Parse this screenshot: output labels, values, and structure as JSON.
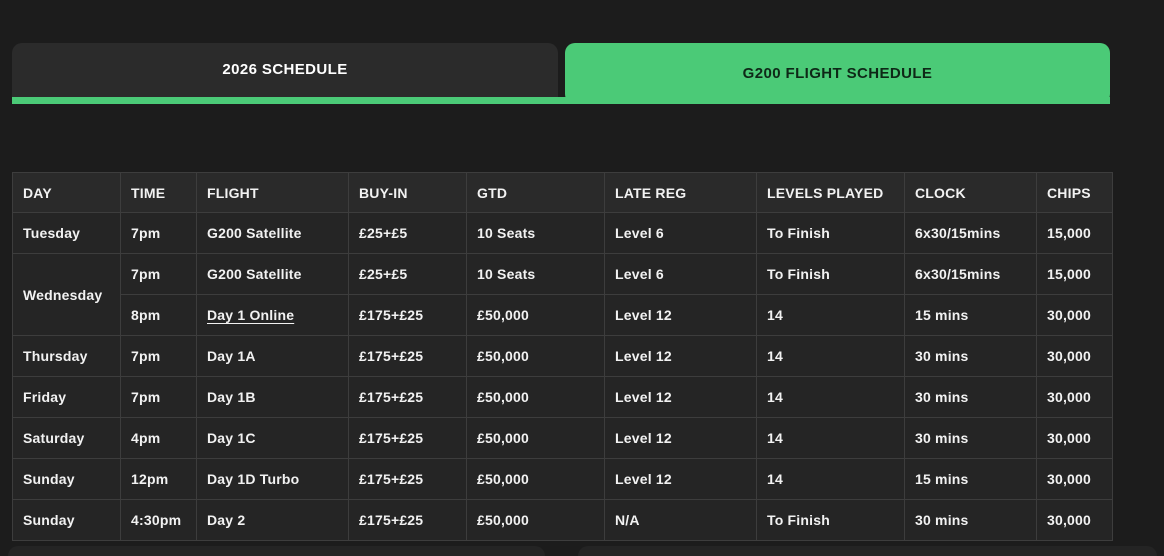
{
  "colors": {
    "accent_green": "#4bca77",
    "page_background": "#1c1c1c",
    "cell_background": "#252525"
  },
  "tabs": [
    {
      "label": "2026 SCHEDULE",
      "active": false
    },
    {
      "label": "G200 FLIGHT SCHEDULE",
      "active": true
    }
  ],
  "table": {
    "columns": [
      "DAY",
      "TIME",
      "FLIGHT",
      "BUY-IN",
      "GTD",
      "LATE REG",
      "LEVELS PLAYED",
      "CLOCK",
      "CHIPS"
    ],
    "rows": [
      {
        "day": "Tuesday",
        "rowspan": 1,
        "flight_is_link": false,
        "cells": [
          "7pm",
          "G200 Satellite",
          "£25+£5",
          "10 Seats",
          "Level 6",
          "To Finish",
          "6x30/15mins",
          "15,000"
        ]
      },
      {
        "day": "Wednesday",
        "rowspan": 2,
        "flight_is_link": false,
        "cells": [
          "7pm",
          "G200 Satellite",
          "£25+£5",
          "10 Seats",
          "Level 6",
          "To Finish",
          "6x30/15mins",
          "15,000"
        ]
      },
      {
        "day": null,
        "rowspan": 0,
        "flight_is_link": true,
        "cells": [
          "8pm",
          "Day 1 Online",
          "£175+£25",
          "£50,000",
          "Level 12",
          "14",
          "15 mins",
          "30,000"
        ]
      },
      {
        "day": "Thursday",
        "rowspan": 1,
        "flight_is_link": false,
        "cells": [
          "7pm",
          "Day 1A",
          "£175+£25",
          "£50,000",
          "Level 12",
          "14",
          "30 mins",
          "30,000"
        ]
      },
      {
        "day": "Friday",
        "rowspan": 1,
        "flight_is_link": false,
        "cells": [
          "7pm",
          "Day 1B",
          "£175+£25",
          "£50,000",
          "Level 12",
          "14",
          "30 mins",
          "30,000"
        ]
      },
      {
        "day": "Saturday",
        "rowspan": 1,
        "flight_is_link": false,
        "cells": [
          "4pm",
          "Day 1C",
          "£175+£25",
          "£50,000",
          "Level 12",
          "14",
          "30 mins",
          "30,000"
        ]
      },
      {
        "day": "Sunday",
        "rowspan": 1,
        "flight_is_link": false,
        "cells": [
          "12pm",
          "Day 1D Turbo",
          "£175+£25",
          "£50,000",
          "Level 12",
          "14",
          "15 mins",
          "30,000"
        ]
      },
      {
        "day": "Sunday",
        "rowspan": 1,
        "flight_is_link": false,
        "cells": [
          "4:30pm",
          "Day 2",
          "£175+£25",
          "£50,000",
          "N/A",
          "To Finish",
          "30 mins",
          "30,000"
        ]
      }
    ]
  }
}
